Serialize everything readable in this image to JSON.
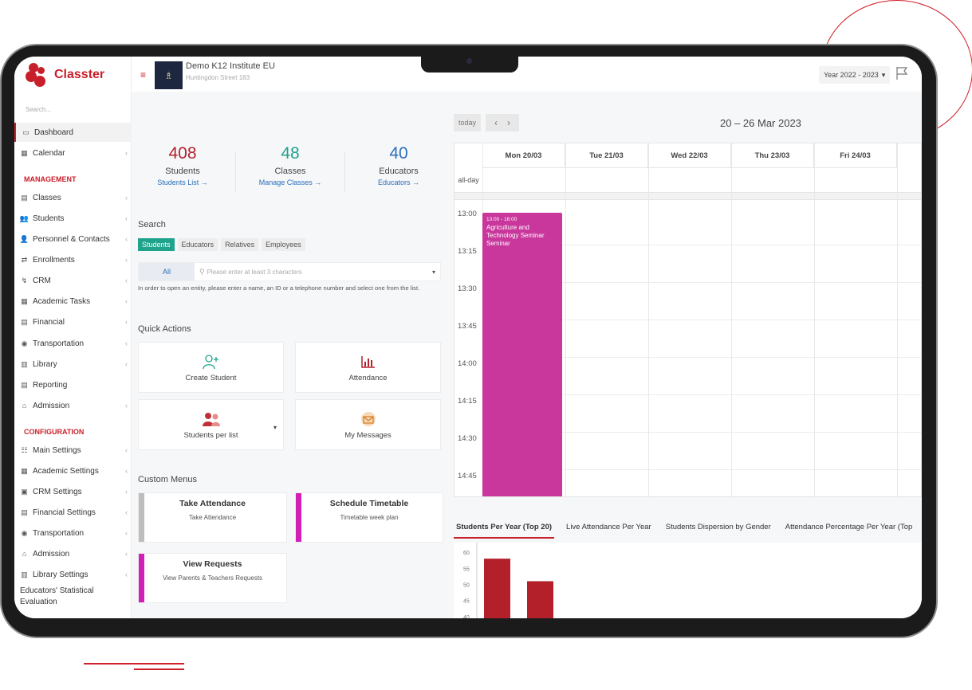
{
  "app": {
    "name": "Classter"
  },
  "sidebar": {
    "search_placeholder": "Search...",
    "items": [
      {
        "label": "Dashboard",
        "icon": "laptop-icon"
      },
      {
        "label": "Calendar",
        "icon": "calendar-icon"
      },
      {
        "label": "Classes",
        "icon": "classes-icon"
      },
      {
        "label": "Students",
        "icon": "students-icon"
      },
      {
        "label": "Personnel & Contacts",
        "icon": "personnel-icon"
      },
      {
        "label": "Enrollments",
        "icon": "enrollments-icon"
      },
      {
        "label": "CRM",
        "icon": "crm-icon"
      },
      {
        "label": "Academic Tasks",
        "icon": "academic-tasks-icon"
      },
      {
        "label": "Financial",
        "icon": "financial-icon"
      },
      {
        "label": "Transportation",
        "icon": "bus-icon"
      },
      {
        "label": "Library",
        "icon": "library-icon"
      },
      {
        "label": "Reporting",
        "icon": "reporting-icon"
      },
      {
        "label": "Admission",
        "icon": "admission-icon"
      },
      {
        "label": "Main Settings",
        "icon": "settings-icon"
      },
      {
        "label": "Academic Settings",
        "icon": "academic-settings-icon"
      },
      {
        "label": "CRM Settings",
        "icon": "crm-settings-icon"
      },
      {
        "label": "Financial Settings",
        "icon": "financial-settings-icon"
      },
      {
        "label": "Transportation",
        "icon": "bus-icon"
      },
      {
        "label": "Admission",
        "icon": "admission-icon"
      },
      {
        "label": "Library Settings",
        "icon": "library-icon"
      },
      {
        "label": "Educators' Statistical Evaluation",
        "icon": ""
      }
    ],
    "section_management": "MANAGEMENT",
    "section_configuration": "CONFIGURATION"
  },
  "header": {
    "school_name": "Demo K12 Institute EU",
    "school_address": "Huntingdon Street 183",
    "year": "Year 2022 - 2023"
  },
  "stats": [
    {
      "value": "408",
      "label": "Students",
      "link": "Students List →",
      "color": "#b3202a"
    },
    {
      "value": "48",
      "label": "Classes",
      "link": "Manage Classes →",
      "color": "#1fa38c"
    },
    {
      "value": "40",
      "label": "Educators",
      "link": "Educators →",
      "color": "#2a6fba"
    }
  ],
  "search": {
    "title": "Search",
    "chips": [
      "Students",
      "Educators",
      "Relatives",
      "Employees"
    ],
    "scope": "All",
    "placeholder": "Please enter at least 3 characters",
    "hint": "In order to open an entity, please enter a name, an ID or a telephone number and select one from the list."
  },
  "quick_actions": {
    "title": "Quick Actions",
    "items": [
      "Create Student",
      "Attendance",
      "Students per list",
      "My Messages"
    ]
  },
  "custom_menus": {
    "title": "Custom Menus",
    "items": [
      {
        "title": "Take Attendance",
        "subtitle": "Take Attendance",
        "color": "#bdbdbd"
      },
      {
        "title": "Schedule Timetable",
        "subtitle": "Timetable week plan",
        "color": "#d21fb5"
      },
      {
        "title": "View Requests",
        "subtitle": "View Parents & Teachers Requests",
        "color": "#d21fb5"
      }
    ]
  },
  "calendar": {
    "today": "today",
    "prev": "‹",
    "next": "›",
    "range": "20 – 26 Mar 2023",
    "days": [
      "Mon 20/03",
      "Tue 21/03",
      "Wed 22/03",
      "Thu 23/03",
      "Fri 24/03"
    ],
    "allday": "all-day",
    "times": [
      "13:00",
      "13:15",
      "13:30",
      "13:45",
      "14:00",
      "14:15",
      "14:30",
      "14:45"
    ],
    "event": {
      "time": "13:00 - 16:00",
      "name": "Agriculture and Technology Seminar Seminar",
      "color": "#c9369c"
    }
  },
  "chart_tabs": [
    "Students Per Year (Top 20)",
    "Live Attendance Per Year",
    "Students Dispersion by Gender",
    "Attendance Percentage Per Year (Top"
  ],
  "chart_data": {
    "type": "bar",
    "title": "Students Per Year (Top 20)",
    "yticks": [
      60,
      55,
      50,
      45,
      40
    ],
    "ylim": [
      38,
      62
    ],
    "values": [
      58,
      51
    ],
    "color": "#b3202a"
  }
}
